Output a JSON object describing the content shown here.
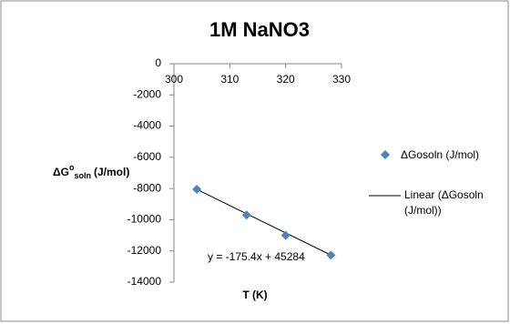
{
  "chart_data": {
    "type": "scatter",
    "title": "1M NaNO3",
    "xlabel": "T (K)",
    "ylabel": {
      "symbol": "ΔG",
      "superscript": "o",
      "subscript": "soln",
      "unit": "(J/mol)"
    },
    "series": [
      {
        "name": "ΔGosoln (J/mol)",
        "color": "#4f81bd",
        "x": [
          304.1,
          313,
          320,
          328.1
        ],
        "values": [
          -8050,
          -9700,
          -11000,
          -12270
        ]
      }
    ],
    "trendline": {
      "name": "Linear (ΔGosoln (J/mol))",
      "color": "#000000",
      "slope": -175.4,
      "intercept": 45284,
      "label": "y = -175.4x + 45284"
    },
    "xlim": [
      300,
      330
    ],
    "xticks": [
      300,
      310,
      320,
      330
    ],
    "ylim": [
      -14000,
      0
    ],
    "yticks": [
      0,
      -2000,
      -4000,
      -6000,
      -8000,
      -10000,
      -12000,
      -14000
    ],
    "grid": false,
    "legend": "right"
  }
}
